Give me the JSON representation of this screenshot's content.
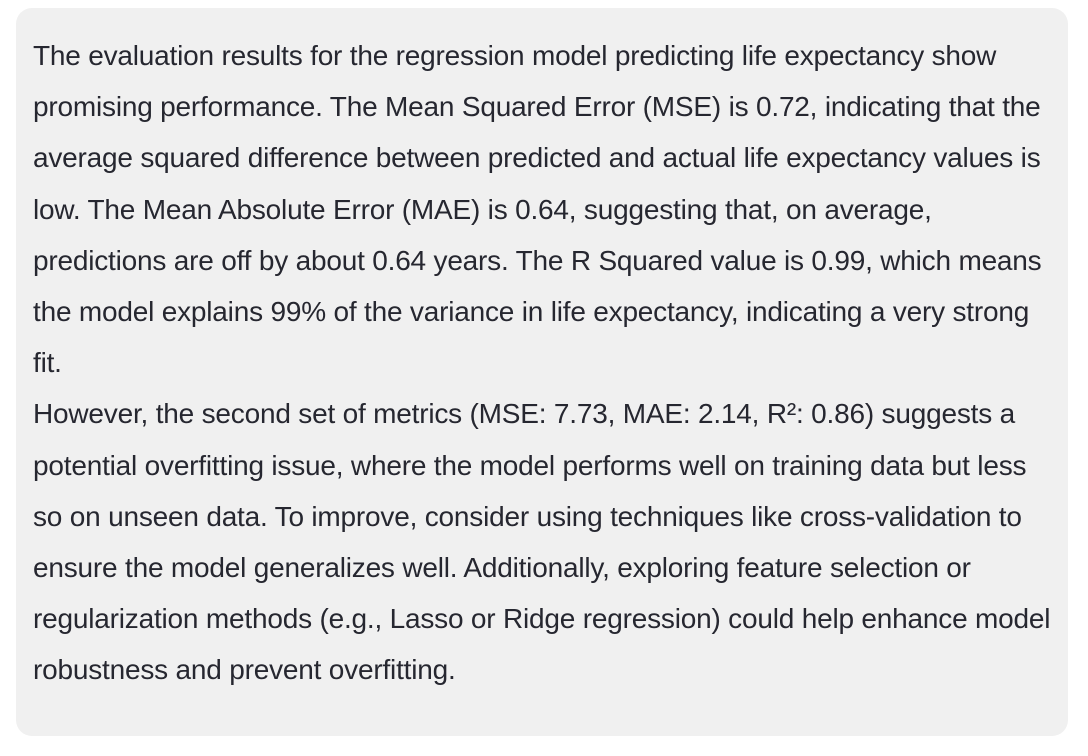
{
  "message": {
    "paragraphs": [
      "The evaluation results for the regression model predicting life expectancy show promising performance. The Mean Squared Error (MSE) is 0.72, indicating that the average squared difference between predicted and actual life expectancy values is low. The Mean Absolute Error (MAE) is 0.64, suggesting that, on average, predictions are off by about 0.64 years. The R Squared value is 0.99, which means the model explains 99% of the variance in life expectancy, indicating a very strong fit.",
      "However, the second set of metrics (MSE: 7.73, MAE: 2.14, R²: 0.86) suggests a potential overfitting issue, where the model performs well on training data but less so on unseen data. To improve, consider using techniques like cross-validation to ensure the model generalizes well. Additionally, exploring feature selection or regularization methods (e.g., Lasso or Ridge regression) could help enhance model robustness and prevent overfitting."
    ]
  }
}
